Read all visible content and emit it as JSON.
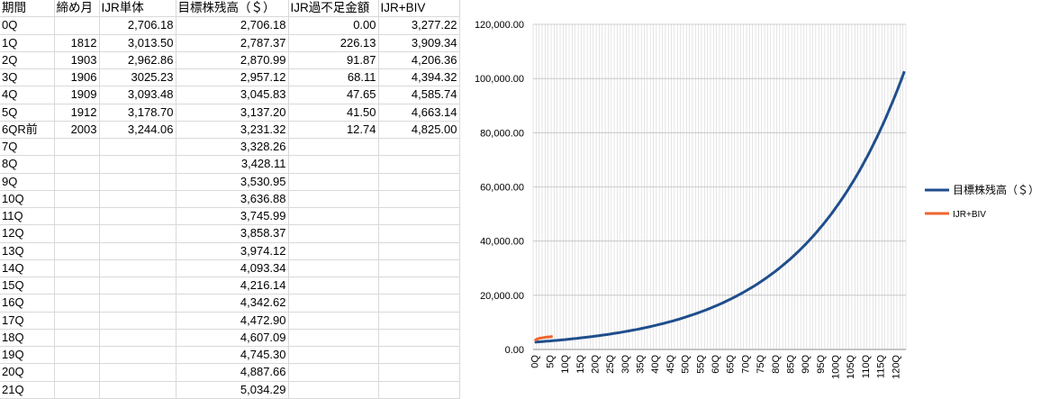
{
  "table": {
    "headers": [
      "期間",
      "締め月",
      "IJR単体",
      "目標株残高（＄）",
      "IJR過不足金額",
      "IJR+BIV"
    ],
    "rows": [
      [
        "0Q",
        "",
        "2,706.18",
        "2,706.18",
        "0.00",
        "3,277.22"
      ],
      [
        "1Q",
        "1812",
        "3,013.50",
        "2,787.37",
        "226.13",
        "3,909.34"
      ],
      [
        "2Q",
        "1903",
        "2,962.86",
        "2,870.99",
        "91.87",
        "4,206.36"
      ],
      [
        "3Q",
        "1906",
        "3025.23",
        "2,957.12",
        "68.11",
        "4,394.32"
      ],
      [
        "4Q",
        "1909",
        "3,093.48",
        "3,045.83",
        "47.65",
        "4,585.74"
      ],
      [
        "5Q",
        "1912",
        "3,178.70",
        "3,137.20",
        "41.50",
        "4,663.14"
      ],
      [
        "6QR前",
        "2003",
        "3,244.06",
        "3,231.32",
        "12.74",
        "4,825.00"
      ],
      [
        "7Q",
        "",
        "",
        "3,328.26",
        "",
        ""
      ],
      [
        "8Q",
        "",
        "",
        "3,428.11",
        "",
        ""
      ],
      [
        "9Q",
        "",
        "",
        "3,530.95",
        "",
        ""
      ],
      [
        "10Q",
        "",
        "",
        "3,636.88",
        "",
        ""
      ],
      [
        "11Q",
        "",
        "",
        "3,745.99",
        "",
        ""
      ],
      [
        "12Q",
        "",
        "",
        "3,858.37",
        "",
        ""
      ],
      [
        "13Q",
        "",
        "",
        "3,974.12",
        "",
        ""
      ],
      [
        "14Q",
        "",
        "",
        "4,093.34",
        "",
        ""
      ],
      [
        "15Q",
        "",
        "",
        "4,216.14",
        "",
        ""
      ],
      [
        "16Q",
        "",
        "",
        "4,342.62",
        "",
        ""
      ],
      [
        "17Q",
        "",
        "",
        "4,472.90",
        "",
        ""
      ],
      [
        "18Q",
        "",
        "",
        "4,607.09",
        "",
        ""
      ],
      [
        "19Q",
        "",
        "",
        "4,745.30",
        "",
        ""
      ],
      [
        "20Q",
        "",
        "",
        "4,887.66",
        "",
        ""
      ],
      [
        "21Q",
        "",
        "",
        "5,034.29",
        "",
        ""
      ]
    ]
  },
  "chart_data": {
    "type": "line",
    "y_ticks": [
      "0.00",
      "20,000.00",
      "40,000.00",
      "60,000.00",
      "80,000.00",
      "100,000.00",
      "120,000.00"
    ],
    "ylim": [
      0,
      120000
    ],
    "x_tick_labels": [
      "0Q",
      "5Q",
      "10Q",
      "15Q",
      "20Q",
      "25Q",
      "30Q",
      "35Q",
      "40Q",
      "45Q",
      "50Q",
      "55Q",
      "60Q",
      "65Q",
      "70Q",
      "75Q",
      "80Q",
      "85Q",
      "90Q",
      "95Q",
      "100Q",
      "105Q",
      "110Q",
      "115Q",
      "120Q"
    ],
    "x_count": 124,
    "grid": true,
    "legend": "right",
    "series": [
      {
        "name": "目標株残高（＄）",
        "color": "#1f4e8c",
        "start": 2706.18,
        "growth_per_quarter": 0.03,
        "points": 124
      },
      {
        "name": "IJR+BIV",
        "color": "#f0642c",
        "values": [
          3277.22,
          3909.34,
          4206.36,
          4394.32,
          4585.74,
          4663.14,
          4825.0
        ]
      }
    ]
  }
}
